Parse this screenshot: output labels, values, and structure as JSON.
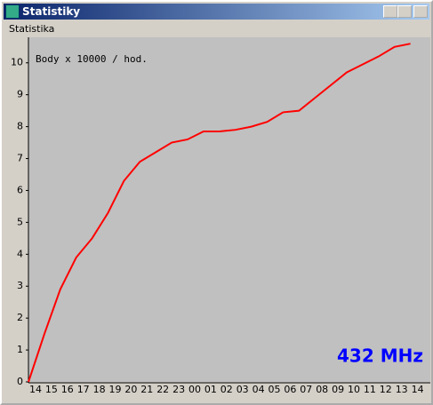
{
  "window": {
    "title": "Statistiky",
    "menu": "Statistika"
  },
  "chart_data": {
    "type": "line",
    "annotations": [
      "Body x 10000 / hod.",
      "432 MHz"
    ],
    "categories": [
      "14",
      "15",
      "16",
      "17",
      "18",
      "19",
      "20",
      "21",
      "22",
      "23",
      "00",
      "01",
      "02",
      "03",
      "04",
      "05",
      "06",
      "07",
      "08",
      "09",
      "10",
      "11",
      "12",
      "13",
      "14"
    ],
    "values": [
      0,
      1.5,
      2.9,
      3.9,
      4.5,
      5.3,
      6.3,
      6.9,
      7.2,
      7.5,
      7.6,
      7.85,
      7.85,
      7.9,
      8.0,
      8.15,
      8.45,
      8.5,
      8.9,
      9.3,
      9.7,
      9.95,
      10.2,
      10.5,
      10.6
    ],
    "color": "#ff0000",
    "ylim": [
      0,
      10.8
    ],
    "yticks": [
      0,
      1,
      2,
      3,
      4,
      5,
      6,
      7,
      8,
      9,
      10
    ],
    "grid": false
  }
}
